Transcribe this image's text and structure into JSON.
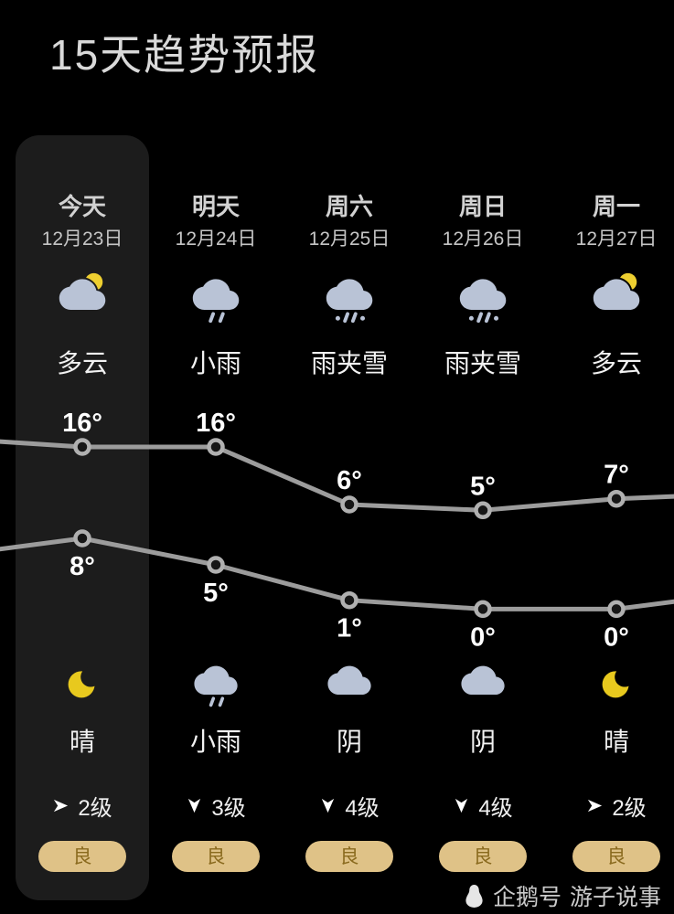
{
  "title": "15天趋势预报",
  "columns": [
    {
      "day": "今天",
      "date": "12月23日",
      "day_icon": "cloud-sun-icon",
      "day_cond": "多云",
      "night_icon": "moon-icon",
      "night_cond": "晴",
      "wind_icon": "right-arrow-icon",
      "wind": "2级",
      "aqi": "良",
      "selected": true
    },
    {
      "day": "明天",
      "date": "12月24日",
      "day_icon": "rain-icon",
      "day_cond": "小雨",
      "night_icon": "rain-icon",
      "night_cond": "小雨",
      "wind_icon": "down-arrow-icon",
      "wind": "3级",
      "aqi": "良",
      "selected": false
    },
    {
      "day": "周六",
      "date": "12月25日",
      "day_icon": "sleet-icon",
      "day_cond": "雨夹雪",
      "night_icon": "cloud-icon",
      "night_cond": "阴",
      "wind_icon": "down-arrow-icon",
      "wind": "4级",
      "aqi": "良",
      "selected": false
    },
    {
      "day": "周日",
      "date": "12月26日",
      "day_icon": "sleet-icon",
      "day_cond": "雨夹雪",
      "night_icon": "cloud-icon",
      "night_cond": "阴",
      "wind_icon": "down-arrow-icon",
      "wind": "4级",
      "aqi": "良",
      "selected": false
    },
    {
      "day": "周一",
      "date": "12月27日",
      "day_icon": "cloud-sun-icon",
      "day_cond": "多云",
      "night_icon": "moon-icon",
      "night_cond": "晴",
      "wind_icon": "right-arrow-icon",
      "wind": "2级",
      "aqi": "良",
      "selected": false
    }
  ],
  "chart_data": {
    "type": "line",
    "categories": [
      "今天",
      "明天",
      "周六",
      "周日",
      "周一"
    ],
    "series": [
      {
        "name": "day-high",
        "values": [
          16,
          16,
          6,
          5,
          7
        ]
      },
      {
        "name": "night-low",
        "values": [
          8,
          5,
          1,
          0,
          0
        ]
      }
    ],
    "unit": "°",
    "legend": "none",
    "grid": false,
    "line_color": "#9c9c9c",
    "point_stroke": "#b0b0b0",
    "point_fill": "#161616",
    "label_color": "#ffffff"
  },
  "watermark": {
    "icon": "penguin-icon",
    "platform": "企鹅号",
    "account": "游子说事"
  },
  "colors": {
    "background": "#000000",
    "selected_card": "#1c1c1c",
    "cloud": "#b9c3d6",
    "sun": "#eecf30",
    "moon": "#e8c91e",
    "arrow": "#ffffff",
    "pill_bg": "#dfc287",
    "pill_text": "#8a6a1e",
    "watermark_text": "#cbcbcb"
  }
}
